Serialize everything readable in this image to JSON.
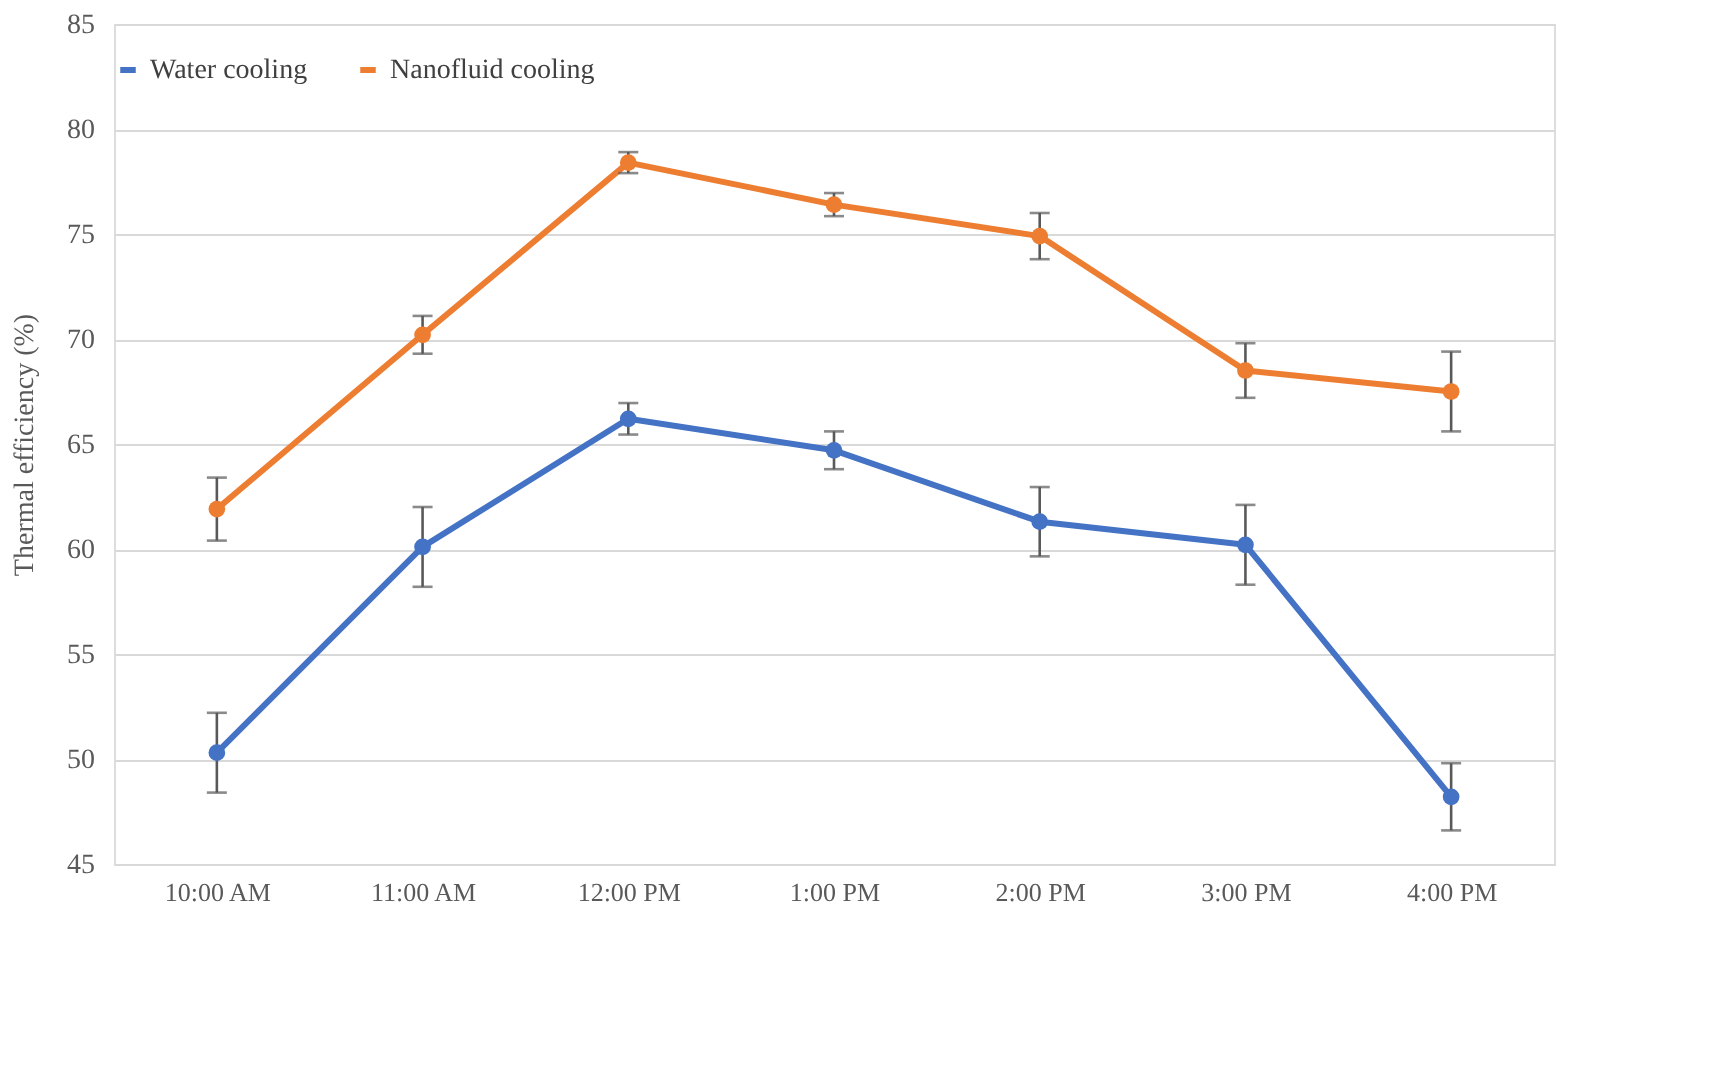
{
  "chart_data": {
    "type": "line",
    "ylabel": "Thermal  efficiency (%)",
    "categories": [
      "10:00 AM",
      "11:00 AM",
      "12:00 PM",
      "1:00 PM",
      "2:00 PM",
      "3:00 PM",
      "4:00 PM"
    ],
    "series": [
      {
        "name": "Water cooling",
        "color": "#4472c4",
        "values": [
          50.3,
          60.1,
          66.2,
          64.7,
          61.3,
          60.2,
          48.2
        ],
        "errors": [
          1.9,
          1.9,
          0.75,
          0.9,
          1.65,
          1.9,
          1.6
        ]
      },
      {
        "name": "Nanofluid cooling",
        "color": "#ed7d31",
        "values": [
          61.9,
          70.2,
          78.4,
          76.4,
          74.9,
          68.5,
          67.5
        ],
        "errors": [
          1.5,
          0.9,
          0.5,
          0.55,
          1.1,
          1.3,
          1.9
        ]
      }
    ],
    "ylim": [
      45,
      85
    ],
    "yticks": [
      45,
      50,
      55,
      60,
      65,
      70,
      75,
      80,
      85
    ],
    "grid": "y",
    "legend": "top",
    "marker": "circle",
    "line_style": "solid"
  }
}
